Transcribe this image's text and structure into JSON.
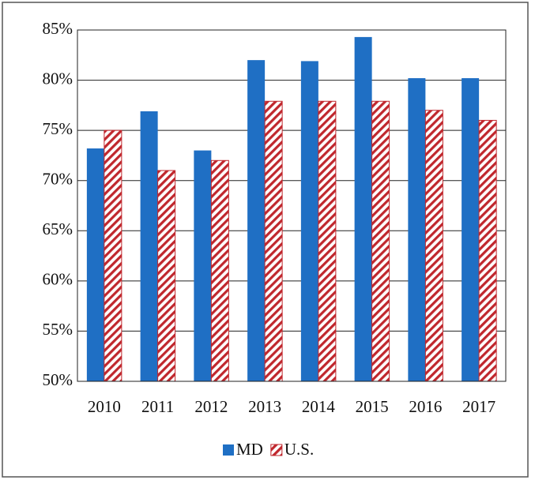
{
  "chart_data": {
    "type": "bar",
    "categories": [
      "2010",
      "2011",
      "2012",
      "2013",
      "2014",
      "2015",
      "2016",
      "2017"
    ],
    "series": [
      {
        "name": "MD",
        "color": "#1f6fc4",
        "values": [
          73.2,
          76.9,
          73,
          82,
          81.9,
          84.3,
          80.2,
          80.2
        ]
      },
      {
        "name": "U.S.",
        "color": "#c0272d",
        "pattern": "hatch",
        "values": [
          75,
          71,
          72,
          77.9,
          77.9,
          77.9,
          77,
          76
        ]
      }
    ],
    "ylim": [
      50,
      85
    ],
    "yticks": [
      {
        "value": 50,
        "label": "50%"
      },
      {
        "value": 55,
        "label": "55%"
      },
      {
        "value": 60,
        "label": "60%"
      },
      {
        "value": 65,
        "label": "65%"
      },
      {
        "value": 70,
        "label": "70%"
      },
      {
        "value": 75,
        "label": "75%"
      },
      {
        "value": 80,
        "label": "80%"
      },
      {
        "value": 85,
        "label": "85%"
      }
    ],
    "grid": true,
    "legend": "bottom"
  }
}
